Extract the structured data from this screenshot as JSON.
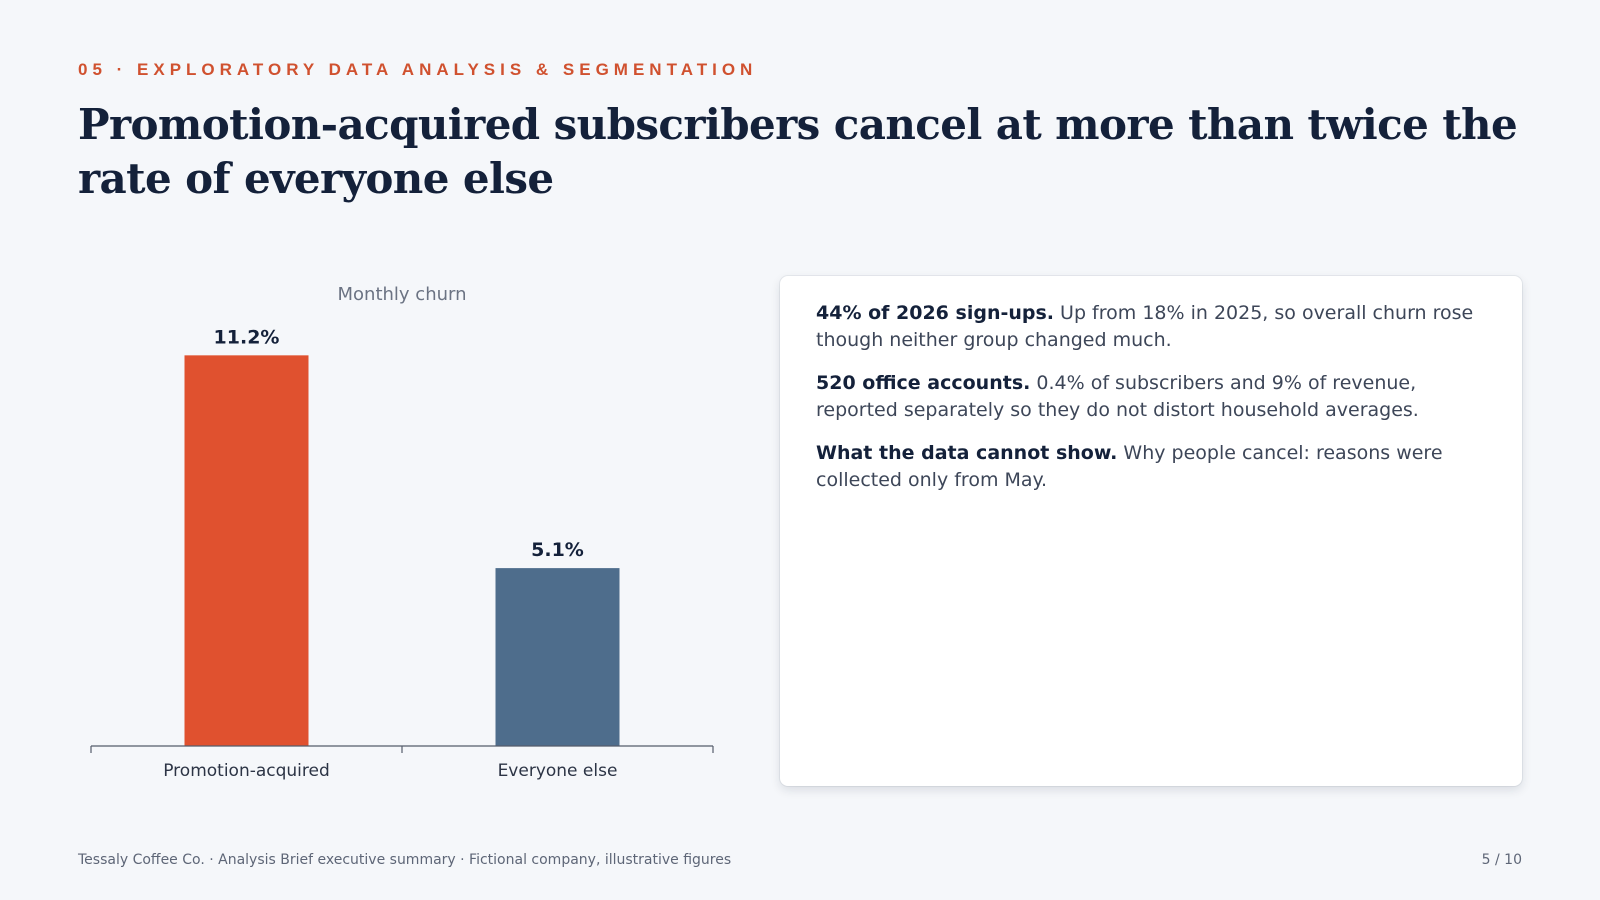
{
  "slide": {
    "eyebrow": "05 · EXPLORATORY DATA ANALYSIS & SEGMENTATION",
    "headline": "Promotion-acquired subscribers cancel at more than twice the rate of everyone else"
  },
  "chart_data": {
    "type": "bar",
    "title": "Monthly churn",
    "xlabel": "",
    "ylabel": "",
    "categories": [
      "Promotion-acquired",
      "Everyone else"
    ],
    "values": [
      11.2,
      5.1
    ],
    "value_labels": [
      "11.2%",
      "5.1%"
    ],
    "colors": [
      "#e0512f",
      "#4e6d8c"
    ],
    "ylim": [
      0,
      12.5
    ],
    "grid": false,
    "legend": "none"
  },
  "notes": [
    {
      "lead": "44% of 2026 sign-ups.",
      "text": " Up from 18% in 2025, so overall churn rose though neither group changed much."
    },
    {
      "lead": "520 office accounts.",
      "text": " 0.4% of subscribers and 9% of revenue, reported separately so they do not distort household averages."
    },
    {
      "lead": "What the data cannot show.",
      "text": " Why people cancel: reasons were collected only from May."
    }
  ],
  "footer": {
    "text": "Tessaly Coffee Co. · Analysis Brief executive summary · Fictional company, illustrative figures",
    "page": "5 / 10"
  },
  "colors": {
    "accent": "#d0512f",
    "promo_bar": "#e0512f",
    "other_bar": "#4e6d8c",
    "headline": "#14213a",
    "background": "#f5f7fa"
  }
}
